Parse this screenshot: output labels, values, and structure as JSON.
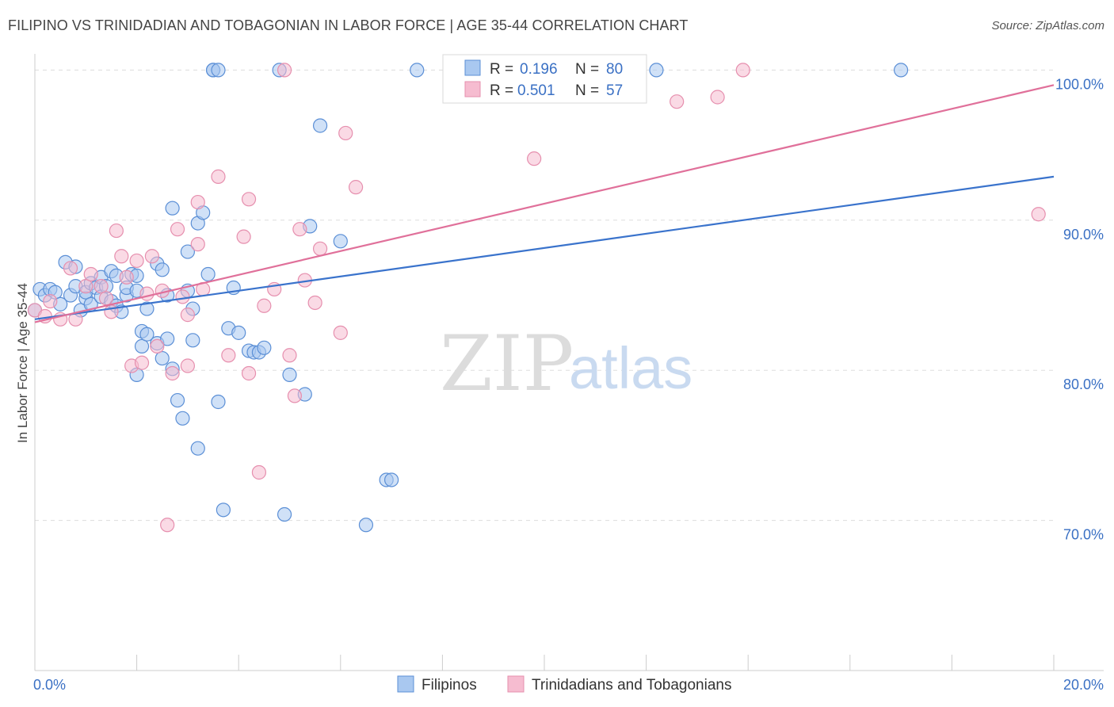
{
  "title": "FILIPINO VS TRINIDADIAN AND TOBAGONIAN IN LABOR FORCE | AGE 35-44 CORRELATION CHART",
  "source": "Source: ZipAtlas.com",
  "watermark": {
    "zip": "ZIP",
    "atlas": "atlas"
  },
  "colors": {
    "blue_fill": "#a9c8f0",
    "blue_stroke": "#5b8fd6",
    "blue_line": "#3a73cc",
    "pink_fill": "#f6bcd0",
    "pink_stroke": "#e68fae",
    "pink_line": "#e0709a",
    "grid": "#dddddd",
    "axis_text": "#3a70c4"
  },
  "legend": {
    "rows": [
      {
        "r_label": "R =",
        "r_value": "0.196",
        "n_label": "N =",
        "n_value": "80"
      },
      {
        "r_label": "R =",
        "r_value": "0.501",
        "n_label": "N =",
        "n_value": "57"
      }
    ]
  },
  "chart_data": {
    "type": "scatter",
    "xlabel": "",
    "ylabel": "In Labor Force | Age 35-44",
    "xlim": [
      0,
      20
    ],
    "ylim": [
      60,
      101.5
    ],
    "x_tick_labels": [
      "0.0%",
      "20.0%"
    ],
    "y_ticks": [
      70,
      80,
      90,
      100
    ],
    "y_tick_labels": [
      "70.0%",
      "80.0%",
      "90.0%",
      "100.0%"
    ],
    "grid": true,
    "legend_placement": "top-center",
    "series": [
      {
        "name": "Filipinos",
        "color": "blue",
        "trend": [
          [
            0,
            83.4
          ],
          [
            20,
            92.9
          ]
        ],
        "points": [
          [
            0.0,
            84.0
          ],
          [
            0.1,
            85.4
          ],
          [
            0.2,
            85.0
          ],
          [
            0.3,
            85.4
          ],
          [
            0.4,
            85.2
          ],
          [
            0.5,
            84.4
          ],
          [
            0.6,
            87.2
          ],
          [
            0.7,
            85.0
          ],
          [
            0.8,
            85.6
          ],
          [
            0.8,
            86.9
          ],
          [
            0.9,
            84.0
          ],
          [
            1.0,
            84.8
          ],
          [
            1.0,
            85.2
          ],
          [
            1.1,
            85.8
          ],
          [
            1.1,
            84.4
          ],
          [
            1.2,
            85.5
          ],
          [
            1.3,
            86.2
          ],
          [
            1.3,
            84.9
          ],
          [
            1.4,
            85.6
          ],
          [
            1.5,
            84.6
          ],
          [
            1.5,
            86.6
          ],
          [
            1.6,
            86.3
          ],
          [
            1.6,
            84.3
          ],
          [
            1.7,
            83.9
          ],
          [
            1.8,
            85.0
          ],
          [
            1.8,
            85.5
          ],
          [
            1.9,
            86.4
          ],
          [
            2.0,
            79.7
          ],
          [
            2.0,
            86.3
          ],
          [
            2.0,
            85.3
          ],
          [
            2.1,
            82.6
          ],
          [
            2.1,
            81.6
          ],
          [
            2.2,
            84.1
          ],
          [
            2.2,
            82.4
          ],
          [
            2.4,
            87.1
          ],
          [
            2.4,
            81.8
          ],
          [
            2.5,
            80.8
          ],
          [
            2.5,
            86.7
          ],
          [
            2.6,
            85.0
          ],
          [
            2.6,
            82.1
          ],
          [
            2.7,
            80.1
          ],
          [
            2.7,
            90.8
          ],
          [
            2.8,
            78.0
          ],
          [
            2.9,
            76.8
          ],
          [
            3.0,
            85.3
          ],
          [
            3.0,
            87.9
          ],
          [
            3.1,
            82.0
          ],
          [
            3.1,
            84.1
          ],
          [
            3.2,
            89.8
          ],
          [
            3.2,
            74.8
          ],
          [
            3.3,
            90.5
          ],
          [
            3.4,
            86.4
          ],
          [
            3.5,
            100.0
          ],
          [
            3.5,
            100.0
          ],
          [
            3.6,
            100.0
          ],
          [
            3.6,
            77.9
          ],
          [
            3.7,
            70.7
          ],
          [
            3.8,
            82.8
          ],
          [
            3.9,
            85.5
          ],
          [
            4.0,
            82.5
          ],
          [
            4.2,
            81.3
          ],
          [
            4.3,
            81.2
          ],
          [
            4.4,
            81.2
          ],
          [
            4.5,
            81.5
          ],
          [
            4.8,
            100.0
          ],
          [
            4.9,
            70.4
          ],
          [
            5.0,
            79.7
          ],
          [
            5.3,
            78.4
          ],
          [
            5.4,
            89.6
          ],
          [
            5.6,
            96.3
          ],
          [
            6.0,
            88.6
          ],
          [
            6.5,
            69.7
          ],
          [
            6.9,
            72.7
          ],
          [
            7.0,
            72.7
          ],
          [
            7.5,
            100.0
          ],
          [
            12.2,
            100.0
          ],
          [
            17.0,
            100.0
          ]
        ]
      },
      {
        "name": "Trinidadians and Tobagonians",
        "color": "pink",
        "trend": [
          [
            0,
            83.2
          ],
          [
            20,
            99.0
          ]
        ],
        "points": [
          [
            0.0,
            84.0
          ],
          [
            0.2,
            83.6
          ],
          [
            0.3,
            84.6
          ],
          [
            0.5,
            83.4
          ],
          [
            0.7,
            86.8
          ],
          [
            0.8,
            83.4
          ],
          [
            1.0,
            85.6
          ],
          [
            1.1,
            86.4
          ],
          [
            1.3,
            85.6
          ],
          [
            1.4,
            84.8
          ],
          [
            1.5,
            83.9
          ],
          [
            1.6,
            89.3
          ],
          [
            1.7,
            87.6
          ],
          [
            1.8,
            86.2
          ],
          [
            1.9,
            80.3
          ],
          [
            2.0,
            87.3
          ],
          [
            2.1,
            80.5
          ],
          [
            2.2,
            85.1
          ],
          [
            2.3,
            87.6
          ],
          [
            2.4,
            81.6
          ],
          [
            2.5,
            85.3
          ],
          [
            2.6,
            69.7
          ],
          [
            2.7,
            79.8
          ],
          [
            2.8,
            89.4
          ],
          [
            2.9,
            84.9
          ],
          [
            3.0,
            83.7
          ],
          [
            3.0,
            80.3
          ],
          [
            3.2,
            91.2
          ],
          [
            3.2,
            88.4
          ],
          [
            3.3,
            85.4
          ],
          [
            3.6,
            92.9
          ],
          [
            3.8,
            81.0
          ],
          [
            4.1,
            88.9
          ],
          [
            4.2,
            91.4
          ],
          [
            4.2,
            79.8
          ],
          [
            4.4,
            73.2
          ],
          [
            4.5,
            84.3
          ],
          [
            4.7,
            85.4
          ],
          [
            4.9,
            100.0
          ],
          [
            5.0,
            81.0
          ],
          [
            5.1,
            78.3
          ],
          [
            5.2,
            89.4
          ],
          [
            5.3,
            86.0
          ],
          [
            5.5,
            84.5
          ],
          [
            5.6,
            88.1
          ],
          [
            6.0,
            82.5
          ],
          [
            6.1,
            95.8
          ],
          [
            6.3,
            92.2
          ],
          [
            9.8,
            94.1
          ],
          [
            12.6,
            97.9
          ],
          [
            13.4,
            98.2
          ],
          [
            13.9,
            100.0
          ],
          [
            19.7,
            90.4
          ]
        ]
      }
    ]
  },
  "bottom_legend": [
    {
      "label": "Filipinos"
    },
    {
      "label": "Trinidadians and Tobagonians"
    }
  ]
}
